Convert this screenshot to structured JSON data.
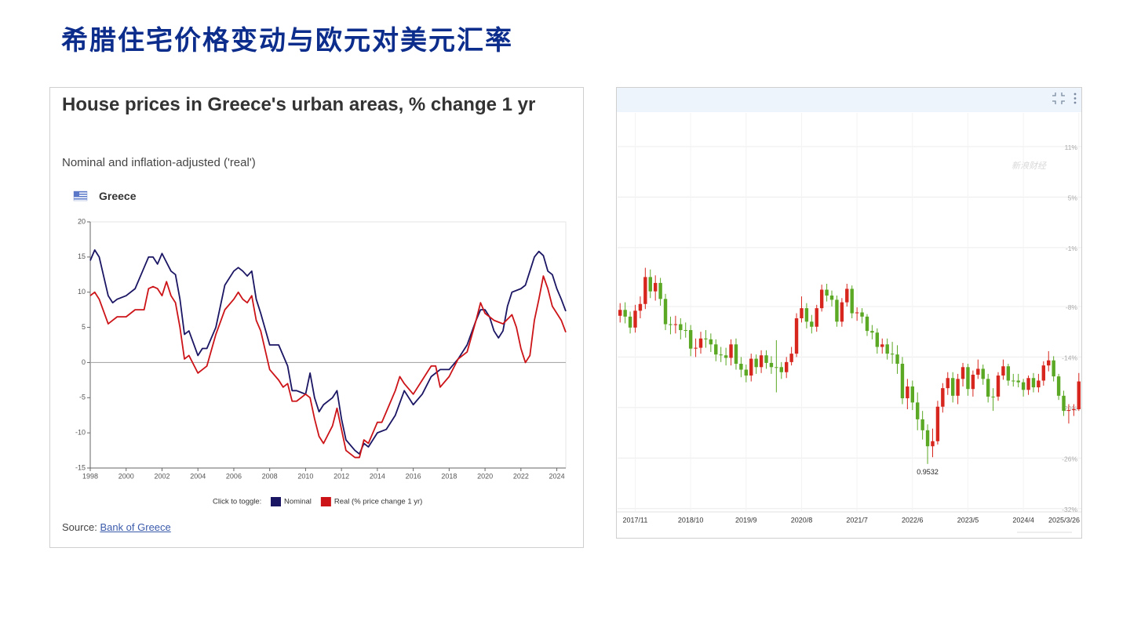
{
  "slide_title": "希腊住宅价格变动与欧元对美元汇率",
  "chart_data": [
    {
      "type": "line",
      "title": "House prices in Greece's urban areas, % change 1 yr",
      "subtitle": "Nominal and inflation-adjusted ('real')",
      "region": "Greece",
      "legend_label": "Click to toggle:",
      "source_label": "Source:",
      "source_link": "Bank of Greece",
      "xlim": [
        1998,
        2024.5
      ],
      "xticks": [
        1998,
        2000,
        2002,
        2004,
        2006,
        2008,
        2010,
        2012,
        2014,
        2016,
        2018,
        2020,
        2022,
        2024
      ],
      "ylim": [
        -15,
        20
      ],
      "yticks": [
        -15,
        -10,
        -5,
        0,
        5,
        10,
        15,
        20
      ],
      "zero_line": true,
      "series": [
        {
          "name": "Nominal",
          "color": "#1b1664",
          "x": [
            1998,
            1998.25,
            1998.5,
            1999,
            1999.25,
            1999.5,
            2000,
            2000.5,
            2001,
            2001.25,
            2001.5,
            2001.75,
            2002,
            2002.5,
            2002.75,
            2003,
            2003.25,
            2003.5,
            2004,
            2004.25,
            2004.5,
            2005,
            2005.5,
            2006,
            2006.25,
            2006.5,
            2006.75,
            2007,
            2007.25,
            2007.5,
            2008,
            2008.5,
            2009,
            2009.25,
            2009.5,
            2010,
            2010.25,
            2010.5,
            2010.75,
            2011,
            2011.5,
            2011.75,
            2012,
            2012.25,
            2012.75,
            2013,
            2013.25,
            2013.5,
            2014,
            2014.5,
            2015,
            2015.5,
            2016,
            2016.5,
            2017,
            2017.5,
            2018,
            2018.5,
            2019,
            2019.5,
            2019.75,
            2020,
            2020.25,
            2020.5,
            2020.75,
            2021,
            2021.25,
            2021.5,
            2022,
            2022.25,
            2022.5,
            2022.75,
            2023,
            2023.25,
            2023.5,
            2023.75,
            2024,
            2024.25,
            2024.5
          ],
          "values": [
            14.5,
            16,
            15,
            9.5,
            8.5,
            9,
            9.5,
            10.5,
            13.5,
            15,
            15,
            14,
            15.5,
            13,
            12.5,
            9,
            4,
            4.5,
            1,
            2,
            2,
            5,
            11,
            13,
            13.5,
            13,
            12.3,
            13,
            9,
            7,
            2.5,
            2.5,
            -0.5,
            -4,
            -4,
            -4.5,
            -1.5,
            -5,
            -7,
            -6,
            -5,
            -4,
            -8,
            -11,
            -12.5,
            -13,
            -11.5,
            -12,
            -10,
            -9.5,
            -7.5,
            -4,
            -6,
            -4.5,
            -2,
            -1,
            -1,
            0.5,
            2.5,
            6,
            7.5,
            7.5,
            6.5,
            4.5,
            3.5,
            4.5,
            8,
            10,
            10.5,
            11,
            13,
            15,
            15.8,
            15.2,
            13,
            12.5,
            10.5,
            9,
            7.3
          ]
        },
        {
          "name": "Real (% price change 1 yr)",
          "color": "#cc1418",
          "x": [
            1998,
            1998.25,
            1998.5,
            1999,
            1999.25,
            1999.5,
            2000,
            2000.5,
            2001,
            2001.25,
            2001.5,
            2001.75,
            2002,
            2002.25,
            2002.5,
            2002.75,
            2003,
            2003.25,
            2003.5,
            2004,
            2004.25,
            2004.5,
            2005,
            2005.5,
            2006,
            2006.25,
            2006.5,
            2006.75,
            2007,
            2007.25,
            2007.5,
            2008,
            2008.5,
            2008.75,
            2009,
            2009.25,
            2009.5,
            2010,
            2010.25,
            2010.5,
            2010.75,
            2011,
            2011.5,
            2011.75,
            2012,
            2012.25,
            2012.75,
            2013,
            2013.25,
            2013.5,
            2014,
            2014.25,
            2014.5,
            2015,
            2015.25,
            2015.5,
            2016,
            2016.5,
            2016.75,
            2017,
            2017.25,
            2017.5,
            2018,
            2018.5,
            2019,
            2019.5,
            2019.75,
            2020,
            2020.25,
            2020.5,
            2021,
            2021.5,
            2021.75,
            2022,
            2022.25,
            2022.5,
            2022.75,
            2023,
            2023.25,
            2023.5,
            2023.75,
            2024,
            2024.25,
            2024.5
          ],
          "values": [
            9.5,
            10,
            9,
            5.5,
            6,
            6.5,
            6.5,
            7.5,
            7.5,
            10.5,
            10.8,
            10.5,
            9.5,
            11.5,
            9.5,
            8.5,
            5,
            0.5,
            1,
            -1.5,
            -1,
            -0.5,
            4,
            7.5,
            9,
            10,
            9,
            8.5,
            9.5,
            6,
            4.5,
            -1,
            -2.5,
            -3.5,
            -3,
            -5.5,
            -5.5,
            -4.5,
            -5,
            -8,
            -10.5,
            -11.5,
            -9,
            -6.5,
            -9.5,
            -12.5,
            -13.5,
            -13.5,
            -11,
            -11.5,
            -8.5,
            -8.5,
            -7,
            -4,
            -2,
            -3,
            -4.5,
            -2.5,
            -1.5,
            -0.5,
            -0.5,
            -3.5,
            -2,
            0.5,
            1.5,
            6,
            8.5,
            7,
            6.5,
            6,
            5.5,
            6.8,
            5,
            2,
            0,
            1,
            6,
            9,
            12.3,
            10.5,
            8,
            7,
            6,
            4.3
          ]
        }
      ]
    },
    {
      "type": "candlestick",
      "watermark": "新浪财经",
      "annotation": "0.9532",
      "up_color": "#d7261e",
      "down_color": "#5aa823",
      "grid": true,
      "ylim": [
        -32.4,
        15
      ],
      "yticks": [
        {
          "value": 11,
          "label": "11%"
        },
        {
          "value": 5,
          "label": "5%"
        },
        {
          "value": -1,
          "label": "-1%"
        },
        {
          "value": -8,
          "label": "-8%"
        },
        {
          "value": -14,
          "label": "-14%"
        },
        {
          "value": -20,
          "label": "-20%"
        },
        {
          "value": -26,
          "label": "-26%"
        },
        {
          "value": -32,
          "label": "-32%"
        }
      ],
      "categories": [
        null,
        null,
        null,
        "2017/11",
        null,
        null,
        null,
        null,
        null,
        null,
        null,
        null,
        null,
        null,
        "2018/10",
        null,
        null,
        null,
        null,
        null,
        null,
        null,
        null,
        null,
        null,
        "2019/9",
        null,
        null,
        null,
        null,
        null,
        null,
        null,
        null,
        null,
        null,
        "2020/8",
        null,
        null,
        null,
        null,
        null,
        null,
        null,
        null,
        null,
        null,
        "2021/7",
        null,
        null,
        null,
        null,
        null,
        null,
        null,
        null,
        null,
        null,
        "2022/6",
        null,
        null,
        null,
        null,
        null,
        null,
        null,
        null,
        null,
        null,
        "2023/5",
        null,
        null,
        null,
        null,
        null,
        null,
        null,
        null,
        null,
        null,
        "2024/4",
        null,
        null,
        null,
        null,
        null,
        null,
        null,
        null,
        null,
        null,
        "2025/3/26"
      ],
      "open": [
        -9.1,
        -8.4,
        -9.2,
        -10.5,
        -8.5,
        -7.7,
        -4.5,
        -6.2,
        -5.2,
        -7.1,
        -10.1,
        -10.2,
        -10.1,
        -10.8,
        -10.8,
        -13.0,
        -12.9,
        -11.8,
        -11.9,
        -12.5,
        -13.7,
        -13.8,
        -14.1,
        -12.5,
        -14.8,
        -15.5,
        -16.2,
        -14.2,
        -15.2,
        -13.8,
        -14.7,
        -15.2,
        -15.2,
        -15.8,
        -14.6,
        -13.6,
        -9.4,
        -8.2,
        -9.8,
        -10.4,
        -8.2,
        -6.0,
        -6.7,
        -7.2,
        -9.8,
        -7.5,
        -5.9,
        -8.8,
        -8.7,
        -9.2,
        -10.9,
        -11.1,
        -12.8,
        -12.5,
        -13.6,
        -13.7,
        -14.8,
        -18.9,
        -17.5,
        -19.4,
        -21.4,
        -22.7,
        -24.6,
        -24.0,
        -19.9,
        -17.7,
        -16.5,
        -18.6,
        -16.6,
        -15.2,
        -17.8,
        -16.1,
        -15.4,
        -16.6,
        -18.7,
        -18.7,
        -16.2,
        -15.1,
        -16.8,
        -16.8,
        -17.0,
        -17.9,
        -16.5,
        -17.6,
        -16.8,
        -15.0,
        -14.4,
        -16.3,
        -18.6,
        -20.4,
        -20.3,
        -20.2
      ],
      "high": [
        -7.6,
        -7.5,
        -8.6,
        -7.8,
        -6.8,
        -3.4,
        -3.6,
        -4.3,
        -4.6,
        -6.5,
        -9.2,
        -9.1,
        -9.4,
        -9.9,
        -10.2,
        -11.8,
        -11.0,
        -10.8,
        -11.2,
        -11.9,
        -12.8,
        -12.9,
        -11.9,
        -11.8,
        -14.0,
        -14.9,
        -13.6,
        -13.7,
        -13.2,
        -13.2,
        -13.9,
        -12.0,
        -14.6,
        -14.0,
        -12.8,
        -8.8,
        -6.8,
        -7.6,
        -9.0,
        -7.8,
        -5.4,
        -5.3,
        -6.1,
        -6.7,
        -7.0,
        -5.3,
        -5.5,
        -8.1,
        -8.2,
        -8.9,
        -10.2,
        -10.6,
        -11.8,
        -11.8,
        -12.2,
        -12.6,
        -14.0,
        -16.6,
        -16.8,
        -18.2,
        -20.4,
        -22.0,
        -22.5,
        -19.2,
        -17.1,
        -15.8,
        -15.8,
        -16.0,
        -14.7,
        -14.8,
        -15.6,
        -14.3,
        -14.9,
        -16.0,
        -17.7,
        -15.8,
        -14.3,
        -14.8,
        -16.0,
        -16.0,
        -16.6,
        -16.2,
        -15.9,
        -16.0,
        -14.5,
        -13.3,
        -13.9,
        -16.0,
        -18.0,
        -19.6,
        -19.6,
        -15.9
      ],
      "low": [
        -9.9,
        -10.0,
        -11.2,
        -11.1,
        -9.4,
        -8.3,
        -7.0,
        -7.3,
        -7.9,
        -10.8,
        -11.3,
        -11.2,
        -11.9,
        -11.7,
        -13.9,
        -14.0,
        -13.6,
        -12.9,
        -13.4,
        -14.5,
        -14.6,
        -15.0,
        -15.0,
        -15.5,
        -16.4,
        -17.0,
        -16.9,
        -16.0,
        -15.9,
        -15.4,
        -16.0,
        -18.2,
        -16.6,
        -16.5,
        -15.0,
        -14.0,
        -9.9,
        -10.6,
        -11.2,
        -11.0,
        -8.6,
        -7.4,
        -8.0,
        -10.4,
        -10.4,
        -8.0,
        -9.4,
        -9.7,
        -10.0,
        -11.5,
        -11.9,
        -13.6,
        -13.6,
        -14.3,
        -14.8,
        -16.0,
        -19.6,
        -20.2,
        -20.3,
        -22.7,
        -23.8,
        -26.7,
        -25.9,
        -24.4,
        -20.6,
        -18.5,
        -19.4,
        -19.6,
        -17.5,
        -18.6,
        -18.7,
        -16.6,
        -17.3,
        -19.4,
        -20.4,
        -19.2,
        -16.7,
        -17.4,
        -17.5,
        -17.6,
        -18.7,
        -18.5,
        -18.2,
        -18.2,
        -17.4,
        -15.7,
        -16.9,
        -19.1,
        -21.0,
        -21.9,
        -21.0,
        -20.4
      ],
      "close": [
        -8.4,
        -9.2,
        -10.5,
        -8.5,
        -7.7,
        -4.5,
        -6.2,
        -5.2,
        -7.1,
        -10.1,
        -10.2,
        -10.1,
        -10.8,
        -10.8,
        -13.0,
        -12.9,
        -11.8,
        -11.9,
        -12.5,
        -13.7,
        -13.8,
        -14.1,
        -12.5,
        -14.8,
        -15.5,
        -16.2,
        -14.2,
        -15.2,
        -13.8,
        -14.7,
        -15.2,
        -15.2,
        -15.8,
        -14.6,
        -13.6,
        -9.4,
        -8.2,
        -9.8,
        -10.4,
        -8.2,
        -6.0,
        -6.7,
        -7.2,
        -9.8,
        -7.5,
        -5.9,
        -8.8,
        -8.7,
        -9.2,
        -10.9,
        -11.1,
        -12.8,
        -12.5,
        -13.6,
        -13.7,
        -14.8,
        -18.9,
        -17.5,
        -19.4,
        -21.4,
        -22.7,
        -24.6,
        -24.0,
        -19.9,
        -17.7,
        -16.5,
        -18.6,
        -16.6,
        -15.2,
        -17.8,
        -16.1,
        -15.4,
        -16.6,
        -18.7,
        -18.7,
        -16.2,
        -15.1,
        -16.8,
        -16.8,
        -17.0,
        -17.9,
        -16.5,
        -17.6,
        -16.8,
        -15.0,
        -14.4,
        -16.3,
        -18.6,
        -20.4,
        -20.3,
        -20.2,
        -16.9
      ]
    }
  ]
}
